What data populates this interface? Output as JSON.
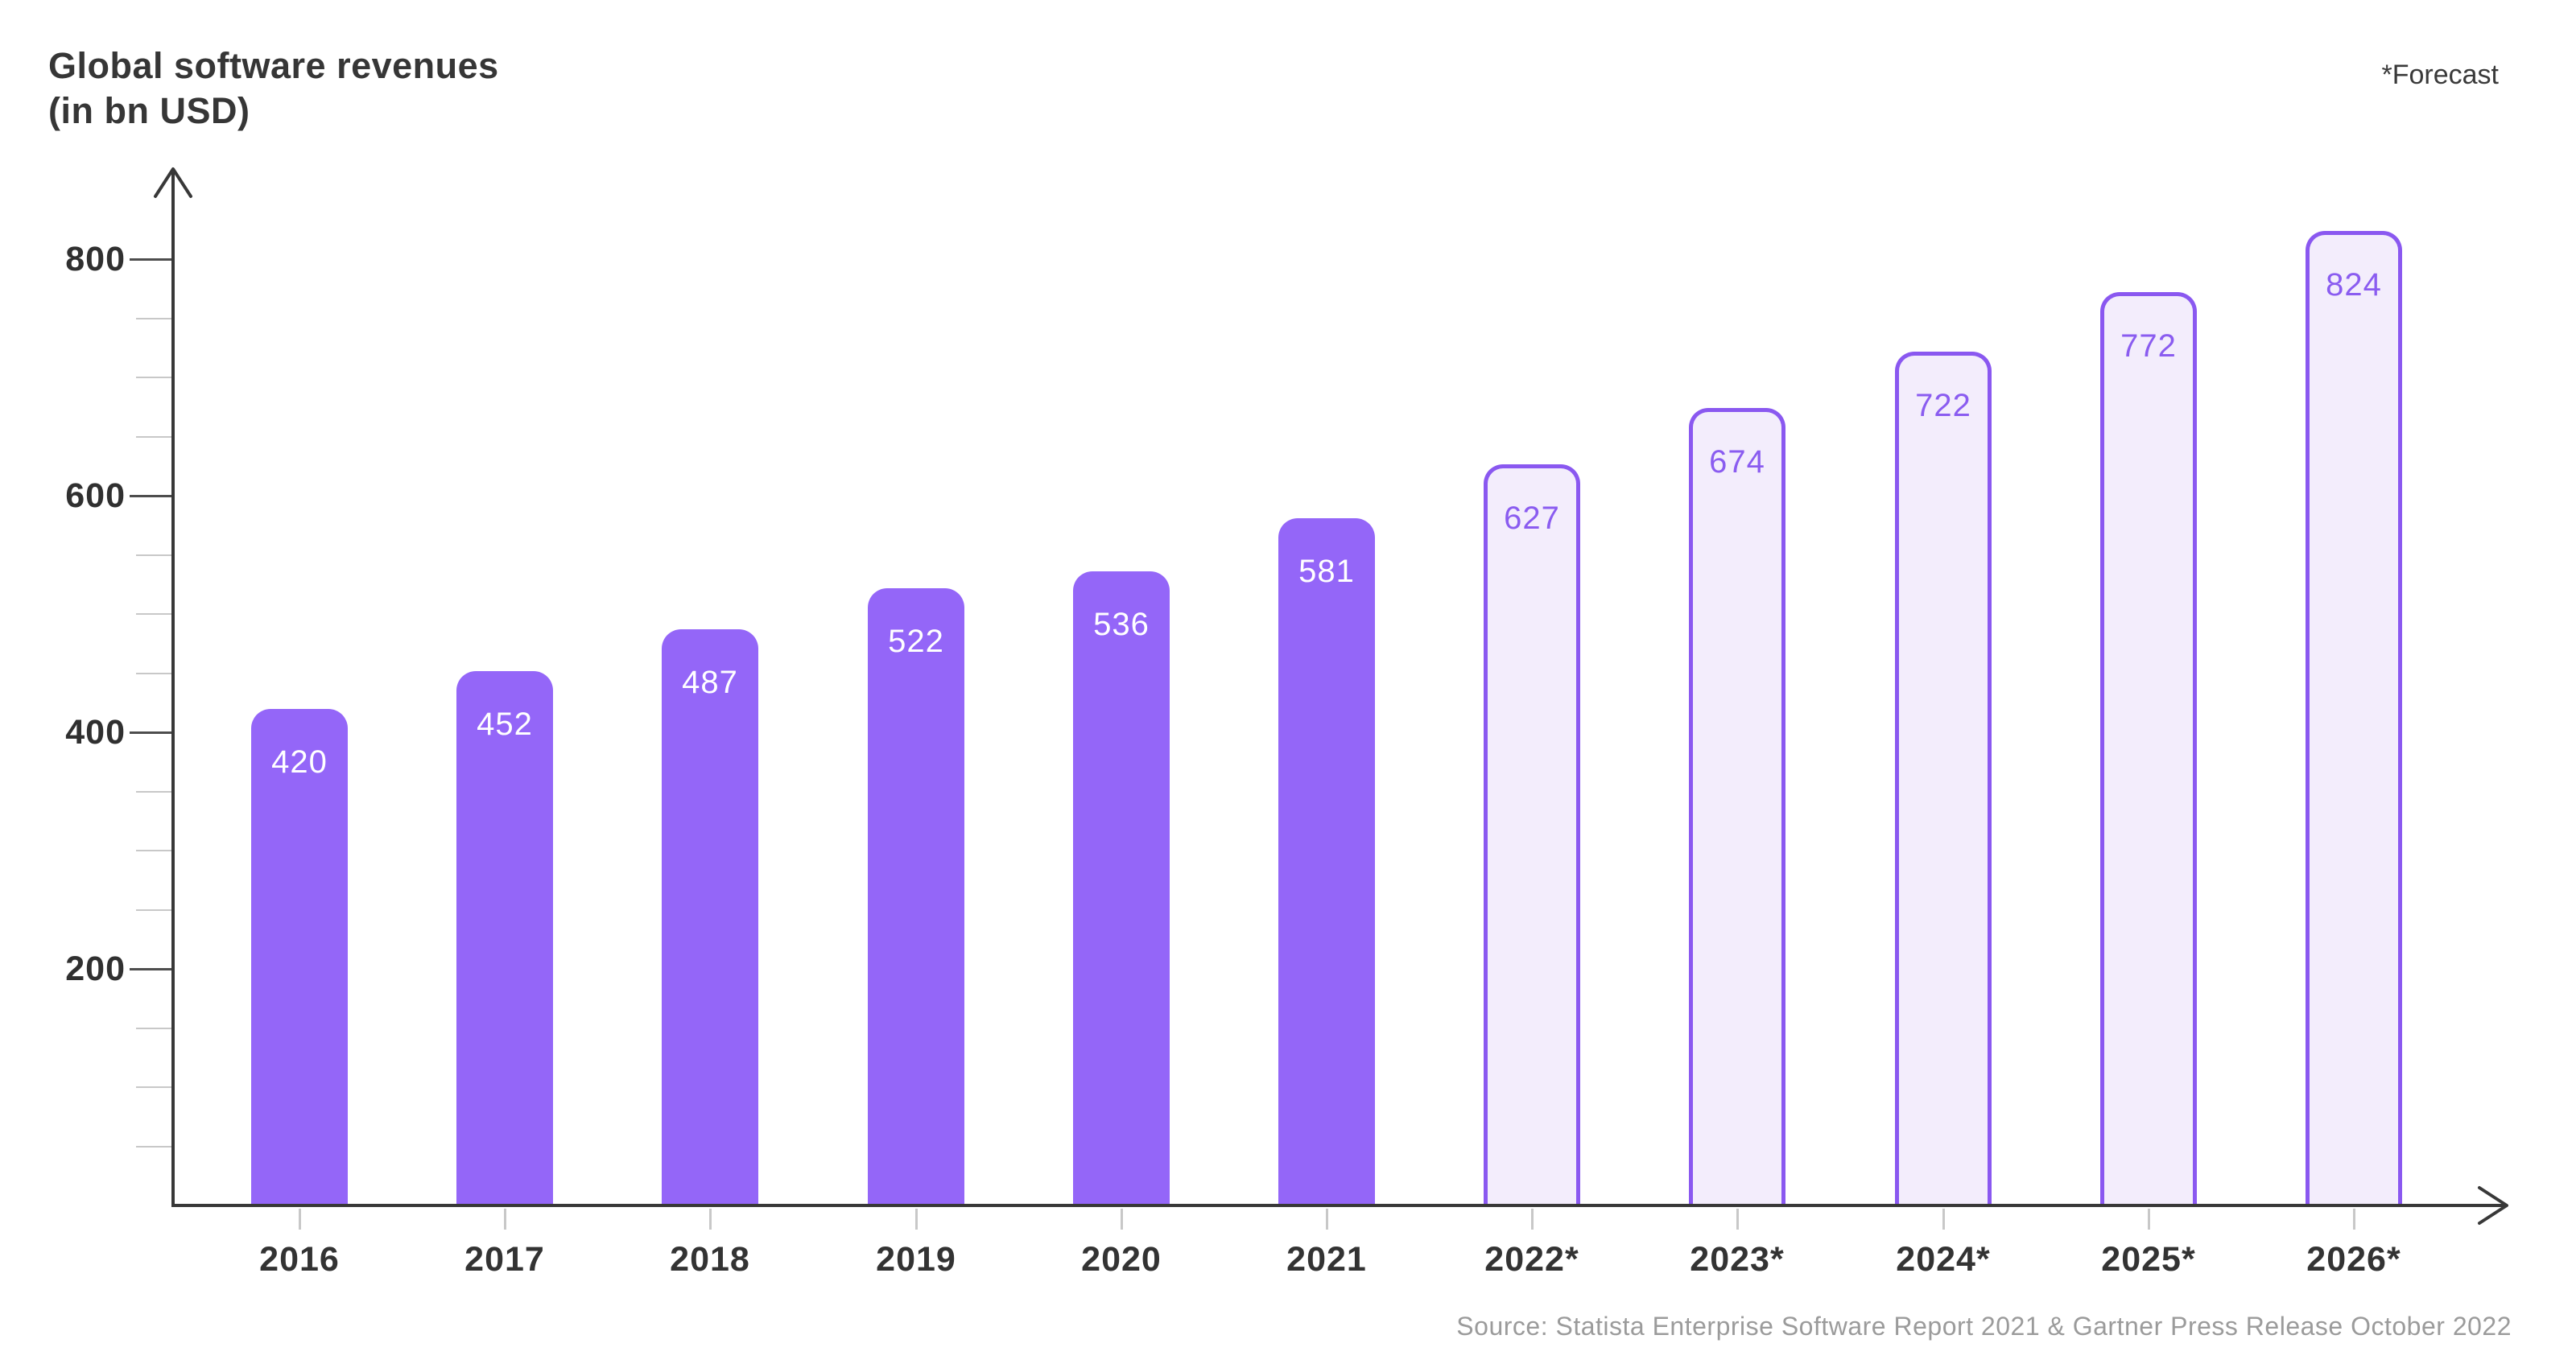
{
  "header": {
    "title_line1": "Global software revenues",
    "title_line2": "(in bn USD)",
    "forecast_note": "*Forecast"
  },
  "footer": {
    "source": "Source: Statista Enterprise Software Report 2021 & Gartner Press Release October 2022"
  },
  "chart_data": {
    "type": "bar",
    "title": "Global software revenues",
    "subtitle": "(in bn USD)",
    "categories": [
      "2016",
      "2017",
      "2018",
      "2019",
      "2020",
      "2021",
      "2022*",
      "2023*",
      "2024*",
      "2025*",
      "2026*"
    ],
    "series": [
      {
        "name": "Global software revenues (bn USD)",
        "values": [
          420,
          452,
          487,
          522,
          536,
          581,
          627,
          674,
          722,
          772,
          824
        ]
      }
    ],
    "forecast_flags": [
      false,
      false,
      false,
      false,
      false,
      false,
      true,
      true,
      true,
      true,
      true
    ],
    "forecast_note": "*Forecast",
    "xlabel": "",
    "ylabel": "",
    "ylim": [
      0,
      880
    ],
    "y_major_ticks": [
      200,
      400,
      600,
      800
    ],
    "y_minor_step": 50,
    "grid": false,
    "legend": "none",
    "source": "Source: Statista Enterprise Software Report 2021 & Gartner Press Release October 2022"
  },
  "colors": {
    "bar_solid": "#9466F8",
    "bar_outline": "#8A58F0",
    "bar_forecast_fill": "#F3EDFC",
    "label_on_solid": "#FFFFFF",
    "label_on_forecast": "#8A5CF0",
    "axis": "#383838",
    "tick_major": "#4D4D4D",
    "tick_minor": "#C8C8C8",
    "text_dark": "#333333",
    "text_source": "#9B9B9B"
  }
}
